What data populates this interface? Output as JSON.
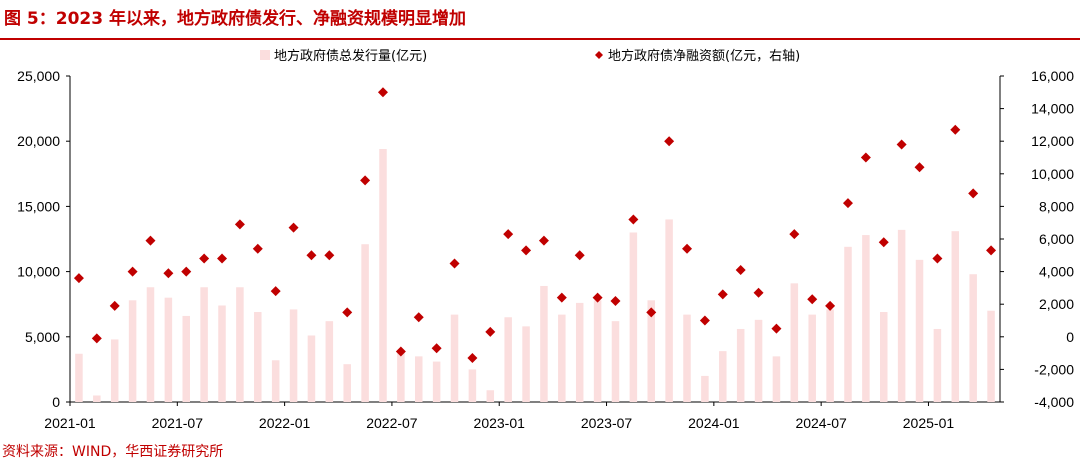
{
  "title": "图 5：2023 年以来，地方政府债发行、净融资规模明显增加",
  "source": "资料来源：WIND，华西证券研究所",
  "colors": {
    "accent": "#c00000",
    "bar": "#fbdede",
    "marker": "#c00000"
  },
  "chart_data": {
    "type": "bar+scatter",
    "series": [
      {
        "name": "地方政府债总发行量(亿元)",
        "type": "bar",
        "axis": "left",
        "values": [
          3700,
          500,
          4800,
          7800,
          8800,
          8000,
          6600,
          8800,
          7400,
          8800,
          6900,
          3200,
          7100,
          5100,
          6200,
          2900,
          12100,
          19400,
          4000,
          3500,
          3100,
          6700,
          2500,
          900,
          6500,
          5800,
          8900,
          6700,
          7600,
          7800,
          6200,
          13000,
          7800,
          14000,
          6700,
          2000,
          3900,
          5600,
          6300,
          3500,
          9100,
          6700,
          7100,
          11900,
          12800,
          6900,
          13200,
          10900,
          5600,
          13100,
          9800,
          7000
        ]
      },
      {
        "name": "地方政府债净融资额(亿元，右轴)",
        "type": "scatter",
        "axis": "right",
        "values": [
          3600,
          -100,
          1900,
          4000,
          5900,
          3900,
          4000,
          4800,
          4800,
          6900,
          5400,
          2800,
          6700,
          5000,
          5000,
          1500,
          9600,
          15000,
          -900,
          1200,
          -700,
          4500,
          -1300,
          300,
          6300,
          5300,
          5900,
          2400,
          5000,
          2400,
          2200,
          7200,
          1500,
          12000,
          5400,
          1000,
          2600,
          4100,
          2700,
          500,
          6300,
          2300,
          1900,
          8200,
          11000,
          5800,
          11800,
          10400,
          4800,
          12700,
          8800,
          5300
        ]
      }
    ],
    "x_labels": [
      "2021-01",
      "2021-07",
      "2022-01",
      "2022-07",
      "2023-01",
      "2023-07",
      "2024-01",
      "2024-07",
      "2025-01"
    ],
    "left_axis": {
      "min": 0,
      "max": 25000,
      "ticks": [
        "0",
        "5,000",
        "10,000",
        "15,000",
        "20,000",
        "25,000"
      ]
    },
    "right_axis": {
      "min": -4000,
      "max": 16000,
      "ticks": [
        "-4,000",
        "-2,000",
        "0",
        "2,000",
        "4,000",
        "6,000",
        "8,000",
        "10,000",
        "12,000",
        "14,000",
        "16,000"
      ]
    },
    "legend_position": "top"
  }
}
